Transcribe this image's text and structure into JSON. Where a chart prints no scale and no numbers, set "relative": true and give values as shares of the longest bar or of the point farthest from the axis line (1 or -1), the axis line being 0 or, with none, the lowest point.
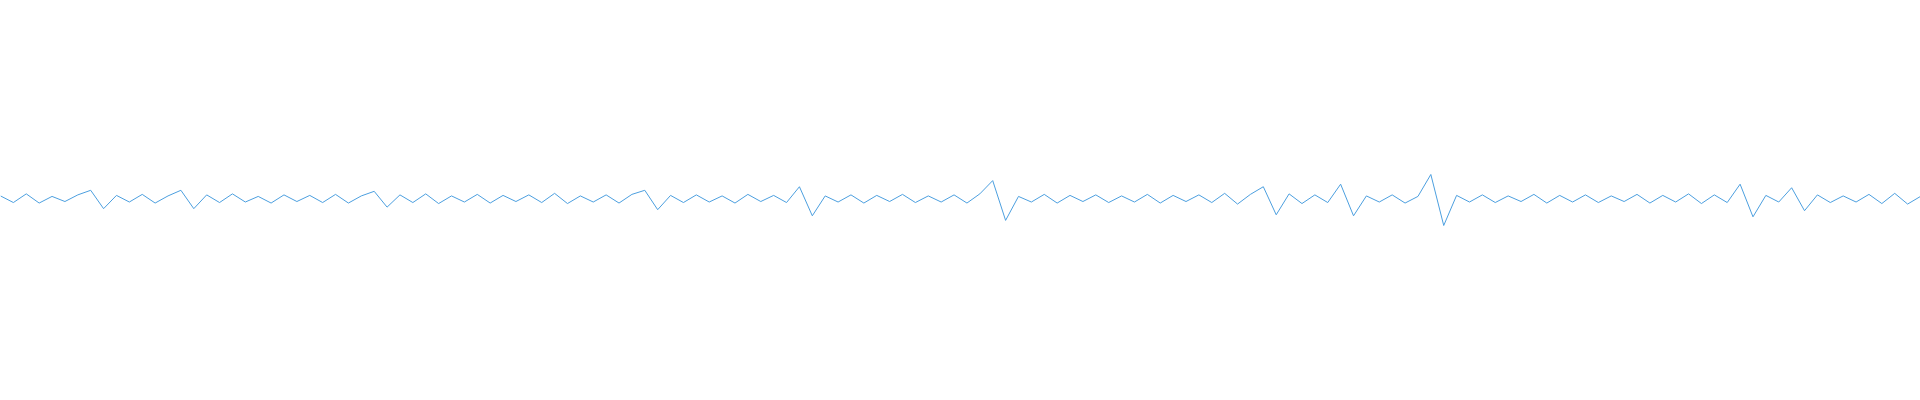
{
  "chart_data": {
    "type": "line",
    "relative": true,
    "color": "#4c9fdf",
    "categories": [
      null,
      null,
      null,
      null,
      null,
      null,
      null,
      null,
      null,
      null,
      null,
      null,
      null,
      null,
      null,
      null,
      null,
      null,
      null,
      null,
      null,
      null,
      null,
      null,
      null,
      null,
      null,
      null,
      null,
      null,
      null,
      null,
      null,
      null,
      null,
      null,
      null,
      null,
      null,
      null,
      null,
      null,
      null,
      null,
      null,
      null,
      null,
      null,
      null,
      null,
      null,
      null,
      null,
      null,
      null,
      null,
      null,
      null,
      null,
      null,
      null,
      null,
      null,
      null,
      null,
      null,
      null,
      null,
      null,
      null,
      null,
      null,
      null,
      null,
      null,
      null,
      null,
      null,
      null,
      null,
      null,
      null,
      null,
      null,
      null,
      null,
      null,
      null,
      null,
      null,
      null,
      null,
      null,
      null,
      null,
      null,
      null,
      null,
      null,
      null,
      null,
      null,
      null,
      null,
      null,
      null,
      null,
      null,
      null,
      null,
      null,
      null,
      null,
      null,
      null,
      null,
      null,
      null,
      null,
      null,
      null,
      null,
      null,
      null,
      null,
      null,
      null,
      null,
      null,
      null,
      null,
      null,
      null,
      null,
      null,
      null,
      null,
      null,
      null,
      null,
      null,
      null,
      null,
      null,
      null,
      null,
      null,
      null,
      null,
      null
    ],
    "values": [
      0.58,
      0.45,
      0.62,
      0.44,
      0.57,
      0.47,
      0.6,
      0.69,
      0.33,
      0.59,
      0.46,
      0.61,
      0.44,
      0.58,
      0.69,
      0.33,
      0.6,
      0.45,
      0.62,
      0.46,
      0.57,
      0.44,
      0.6,
      0.47,
      0.59,
      0.45,
      0.61,
      0.44,
      0.58,
      0.67,
      0.36,
      0.6,
      0.45,
      0.62,
      0.43,
      0.58,
      0.46,
      0.61,
      0.44,
      0.59,
      0.47,
      0.6,
      0.45,
      0.63,
      0.43,
      0.58,
      0.46,
      0.6,
      0.44,
      0.61,
      0.69,
      0.31,
      0.59,
      0.45,
      0.6,
      0.46,
      0.58,
      0.44,
      0.61,
      0.47,
      0.59,
      0.45,
      0.76,
      0.19,
      0.58,
      0.46,
      0.6,
      0.44,
      0.59,
      0.47,
      0.61,
      0.45,
      0.58,
      0.46,
      0.6,
      0.44,
      0.62,
      0.88,
      0.1,
      0.57,
      0.46,
      0.61,
      0.44,
      0.59,
      0.47,
      0.6,
      0.45,
      0.58,
      0.46,
      0.61,
      0.44,
      0.59,
      0.47,
      0.6,
      0.45,
      0.63,
      0.42,
      0.61,
      0.76,
      0.21,
      0.62,
      0.43,
      0.6,
      0.45,
      0.81,
      0.19,
      0.58,
      0.46,
      0.6,
      0.44,
      0.57,
      1.0,
      0.0,
      0.59,
      0.46,
      0.6,
      0.45,
      0.58,
      0.47,
      0.61,
      0.44,
      0.59,
      0.46,
      0.6,
      0.45,
      0.58,
      0.47,
      0.61,
      0.44,
      0.59,
      0.46,
      0.62,
      0.43,
      0.6,
      0.45,
      0.81,
      0.17,
      0.59,
      0.46,
      0.74,
      0.29,
      0.6,
      0.45,
      0.58,
      0.46,
      0.61,
      0.43,
      0.63,
      0.42,
      0.57
    ]
  }
}
